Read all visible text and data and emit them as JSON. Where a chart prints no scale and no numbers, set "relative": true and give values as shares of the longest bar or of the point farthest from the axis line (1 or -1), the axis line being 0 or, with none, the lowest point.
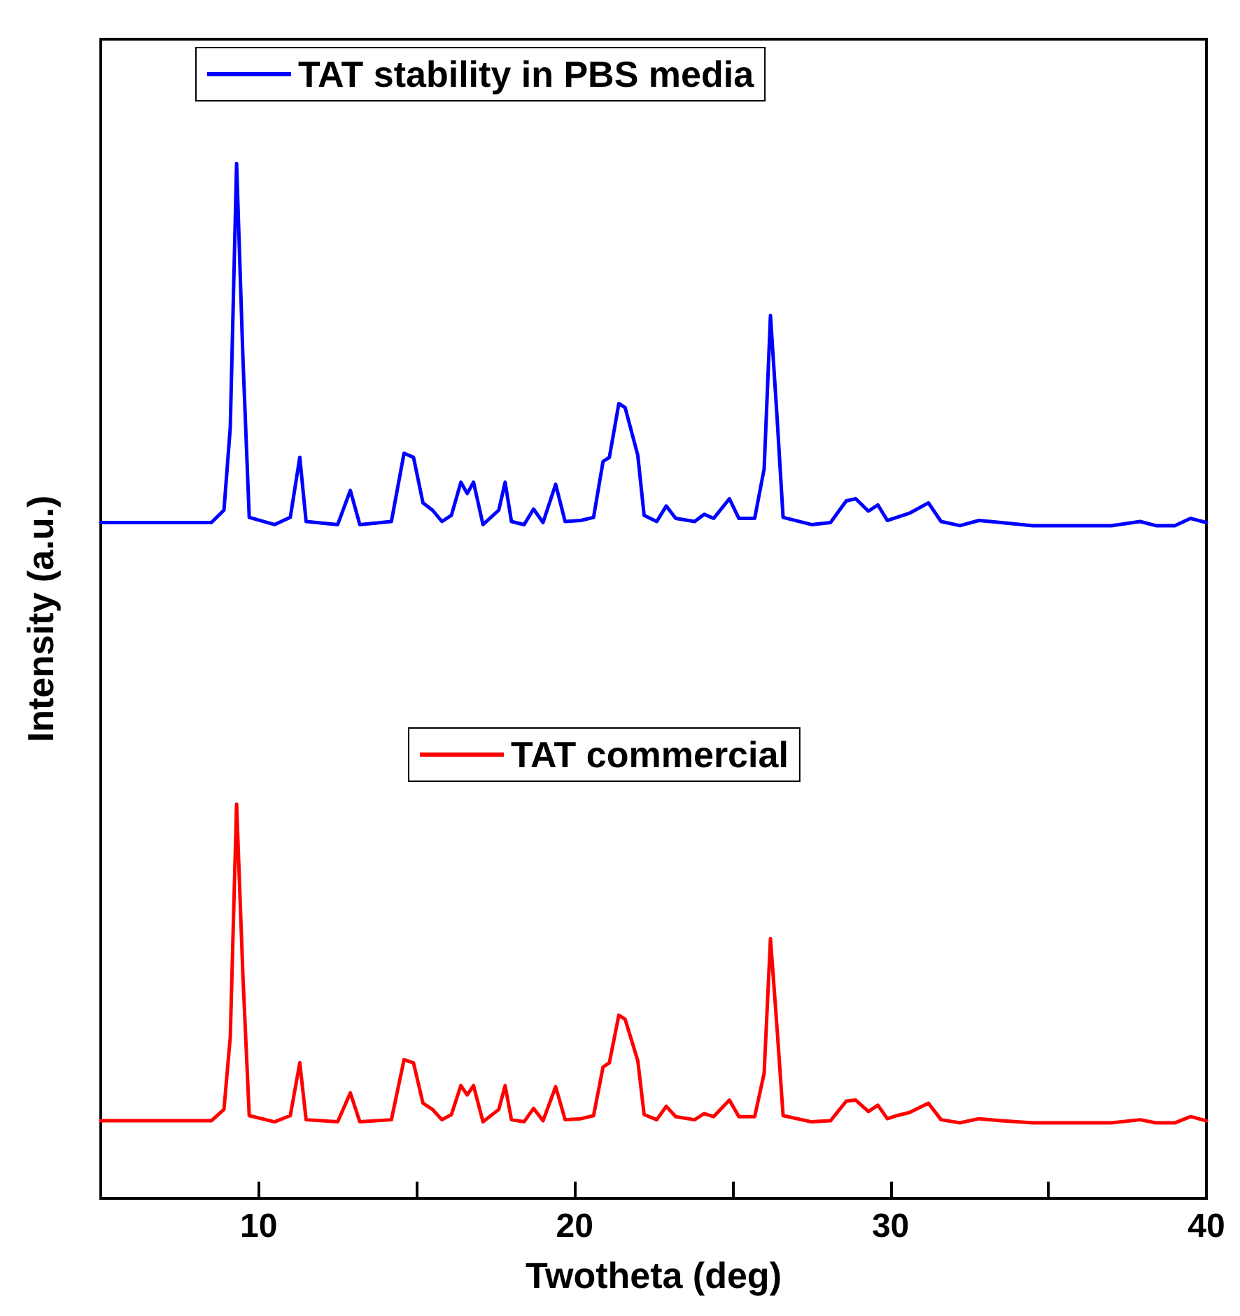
{
  "chart_data": {
    "type": "line",
    "xlabel": "Twotheta (deg)",
    "ylabel": "Intensity (a.u.)",
    "relative": true,
    "xlim": [
      5,
      40
    ],
    "xticks": [
      {
        "value": 5,
        "label": null
      },
      10,
      {
        "value": 15,
        "label": null
      },
      20,
      {
        "value": 25,
        "label": null
      },
      30,
      {
        "value": 35,
        "label": null
      },
      40
    ],
    "legend": "top left",
    "grid": false,
    "marker": "none",
    "line_style": "solid",
    "x": [
      5,
      8.5,
      8.9,
      9.1,
      9.3,
      9.5,
      9.7,
      10.5,
      11.0,
      11.3,
      11.5,
      12.5,
      12.9,
      13.2,
      14.2,
      14.6,
      14.9,
      15.2,
      15.5,
      15.8,
      16.1,
      16.4,
      16.6,
      16.8,
      17.1,
      17.6,
      17.8,
      18.0,
      18.4,
      18.7,
      19.0,
      19.4,
      19.7,
      20.2,
      20.6,
      20.9,
      21.1,
      21.4,
      21.6,
      22.0,
      22.2,
      22.6,
      22.9,
      23.2,
      23.8,
      24.1,
      24.4,
      24.9,
      25.2,
      25.7,
      26.0,
      26.2,
      26.4,
      26.6,
      27.5,
      28.1,
      28.6,
      28.9,
      29.3,
      29.6,
      29.9,
      30.2,
      30.6,
      31.2,
      31.6,
      32.2,
      32.8,
      33.5,
      34.5,
      35.5,
      36.4,
      37.0,
      37.9,
      38.4,
      39.0,
      39.5,
      40
    ],
    "series": [
      {
        "name": "TAT stability in PBS media",
        "color": "#0000ff",
        "values": [
          0.653,
          0.653,
          0.665,
          0.745,
          1,
          0.812,
          0.658,
          0.651,
          0.658,
          0.716,
          0.654,
          0.651,
          0.684,
          0.651,
          0.654,
          0.72,
          0.716,
          0.672,
          0.665,
          0.654,
          0.66,
          0.692,
          0.681,
          0.692,
          0.651,
          0.665,
          0.692,
          0.654,
          0.651,
          0.666,
          0.653,
          0.69,
          0.654,
          0.655,
          0.658,
          0.712,
          0.716,
          0.768,
          0.764,
          0.718,
          0.66,
          0.654,
          0.669,
          0.657,
          0.654,
          0.661,
          0.657,
          0.676,
          0.657,
          0.657,
          0.705,
          0.853,
          0.759,
          0.658,
          0.651,
          0.653,
          0.674,
          0.676,
          0.664,
          0.67,
          0.655,
          0.658,
          0.662,
          0.672,
          0.654,
          0.65,
          0.655,
          0.653,
          0.65,
          0.65,
          0.65,
          0.65,
          0.654,
          0.65,
          0.65,
          0.657,
          0.653
        ]
      },
      {
        "name": "TAT commercial",
        "color": "#ff0000",
        "values": [
          0.075,
          0.075,
          0.086,
          0.156,
          0.381,
          0.215,
          0.08,
          0.074,
          0.08,
          0.131,
          0.076,
          0.074,
          0.102,
          0.074,
          0.076,
          0.134,
          0.131,
          0.092,
          0.086,
          0.076,
          0.081,
          0.109,
          0.1,
          0.109,
          0.074,
          0.086,
          0.109,
          0.076,
          0.074,
          0.087,
          0.075,
          0.108,
          0.076,
          0.077,
          0.08,
          0.127,
          0.131,
          0.177,
          0.173,
          0.133,
          0.081,
          0.076,
          0.089,
          0.079,
          0.076,
          0.082,
          0.079,
          0.095,
          0.079,
          0.079,
          0.121,
          0.251,
          0.168,
          0.08,
          0.074,
          0.075,
          0.094,
          0.095,
          0.084,
          0.09,
          0.077,
          0.08,
          0.083,
          0.092,
          0.076,
          0.073,
          0.077,
          0.075,
          0.073,
          0.073,
          0.073,
          0.073,
          0.076,
          0.073,
          0.073,
          0.079,
          0.075
        ]
      }
    ]
  }
}
